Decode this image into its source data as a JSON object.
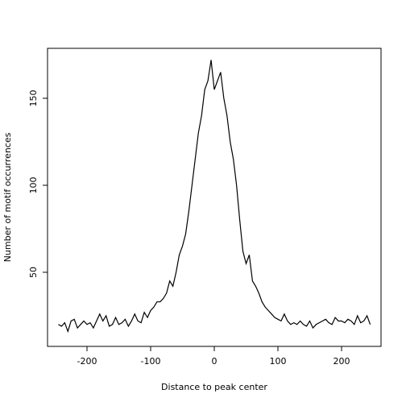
{
  "chart_data": {
    "type": "line",
    "x_label": "Distance to peak center",
    "y_label": "Number of motif occurrences",
    "x": [
      -245,
      -240,
      -235,
      -230,
      -225,
      -220,
      -215,
      -210,
      -205,
      -200,
      -195,
      -190,
      -185,
      -180,
      -175,
      -170,
      -165,
      -160,
      -155,
      -150,
      -145,
      -140,
      -135,
      -130,
      -125,
      -120,
      -115,
      -110,
      -105,
      -100,
      -95,
      -90,
      -85,
      -80,
      -75,
      -70,
      -65,
      -60,
      -55,
      -50,
      -45,
      -40,
      -35,
      -30,
      -25,
      -20,
      -15,
      -10,
      -5,
      0,
      5,
      10,
      15,
      20,
      25,
      30,
      35,
      40,
      45,
      50,
      55,
      60,
      65,
      70,
      75,
      80,
      85,
      90,
      95,
      100,
      105,
      110,
      115,
      120,
      125,
      130,
      135,
      140,
      145,
      150,
      155,
      160,
      165,
      170,
      175,
      180,
      185,
      190,
      195,
      200,
      205,
      210,
      215,
      220,
      225,
      230,
      235,
      240,
      245
    ],
    "series": [
      {
        "color": "#000000",
        "values": [
          20,
          19,
          21,
          16,
          22,
          23,
          18,
          20,
          22,
          20,
          21,
          18,
          22,
          26,
          22,
          25,
          19,
          20,
          24,
          20,
          21,
          23,
          19,
          22,
          26,
          22,
          21,
          27,
          24,
          28,
          30,
          33,
          33,
          35,
          38,
          45,
          42,
          50,
          60,
          65,
          72,
          85,
          100,
          115,
          130,
          140,
          155,
          160,
          172,
          155,
          160,
          165,
          150,
          140,
          125,
          115,
          100,
          80,
          62,
          55,
          60,
          45,
          42,
          38,
          33,
          30,
          28,
          26,
          24,
          23,
          22,
          26,
          22,
          20,
          21,
          20,
          22,
          20,
          19,
          22,
          18,
          20,
          21,
          22,
          23,
          21,
          20,
          24,
          22,
          22,
          21,
          23,
          22,
          20,
          25,
          21,
          22,
          25,
          20
        ]
      }
    ],
    "xlim": [
      -262,
      262
    ],
    "ylim": [
      7.4,
      178.7
    ],
    "xticks": [
      -200,
      -100,
      0,
      100,
      200
    ],
    "yticks": [
      50,
      100,
      150
    ]
  }
}
